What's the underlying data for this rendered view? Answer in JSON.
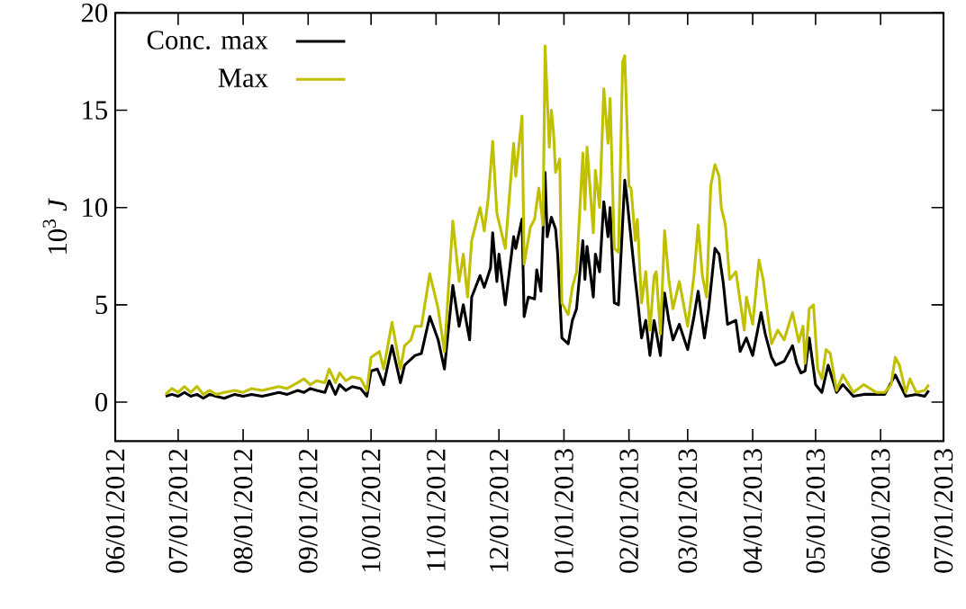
{
  "chart_data": {
    "type": "line",
    "ylabel": "10$^{3}$ *J*",
    "xlim": [
      "2012-06-01",
      "2013-07-01"
    ],
    "ylim": [
      -2,
      20
    ],
    "yticks": [
      0,
      5,
      10,
      15,
      20
    ],
    "xticks": [
      {
        "value": "2012-06-01",
        "label": "06/01/2012"
      },
      {
        "value": "2012-07-01",
        "label": "07/01/2012"
      },
      {
        "value": "2012-08-01",
        "label": "08/01/2012"
      },
      {
        "value": "2012-09-01",
        "label": "09/01/2012"
      },
      {
        "value": "2012-10-01",
        "label": "10/01/2012"
      },
      {
        "value": "2012-11-01",
        "label": "11/01/2012"
      },
      {
        "value": "2012-12-01",
        "label": "12/01/2012"
      },
      {
        "value": "2013-01-01",
        "label": "01/01/2013"
      },
      {
        "value": "2013-02-01",
        "label": "02/01/2013"
      },
      {
        "value": "2013-03-01",
        "label": "03/01/2013"
      },
      {
        "value": "2013-04-01",
        "label": "04/01/2013"
      },
      {
        "value": "2013-05-01",
        "label": "05/01/2013"
      },
      {
        "value": "2013-06-01",
        "label": "06/01/2013"
      },
      {
        "value": "2013-07-01",
        "label": "07/01/2013"
      }
    ],
    "legend": "top left",
    "series": [
      {
        "name": "Conc. max",
        "color": "#000000",
        "x": [
          "2012-06-25",
          "2012-06-28",
          "2012-07-01",
          "2012-07-04",
          "2012-07-07",
          "2012-07-10",
          "2012-07-13",
          "2012-07-16",
          "2012-07-19",
          "2012-07-23",
          "2012-07-28",
          "2012-08-01",
          "2012-08-05",
          "2012-08-10",
          "2012-08-14",
          "2012-08-18",
          "2012-08-22",
          "2012-08-27",
          "2012-08-30",
          "2012-09-02",
          "2012-09-05",
          "2012-09-09",
          "2012-09-11",
          "2012-09-14",
          "2012-09-16",
          "2012-09-19",
          "2012-09-22",
          "2012-09-26",
          "2012-09-29",
          "2012-10-01",
          "2012-10-04",
          "2012-10-07",
          "2012-10-11",
          "2012-10-15",
          "2012-10-17",
          "2012-10-22",
          "2012-10-25",
          "2012-10-29",
          "2012-11-02",
          "2012-11-05",
          "2012-11-09",
          "2012-11-12",
          "2012-11-14",
          "2012-11-17",
          "2012-11-18",
          "2012-11-22",
          "2012-11-24",
          "2012-11-27",
          "2012-11-28",
          "2012-11-30",
          "2012-12-01",
          "2012-12-04",
          "2012-12-08",
          "2012-12-09",
          "2012-12-12",
          "2012-12-13",
          "2012-12-15",
          "2012-12-18",
          "2012-12-19",
          "2012-12-21",
          "2012-12-23",
          "2012-12-24",
          "2012-12-26",
          "2012-12-28",
          "2012-12-29",
          "2012-12-31",
          "2013-01-03",
          "2013-01-05",
          "2013-01-07",
          "2013-01-10",
          "2013-01-11",
          "2013-01-12",
          "2013-01-15",
          "2013-01-16",
          "2013-01-18",
          "2013-01-20",
          "2013-01-22",
          "2013-01-23",
          "2013-01-25",
          "2013-01-27",
          "2013-01-30",
          "2013-01-31",
          "2013-02-04",
          "2013-02-05",
          "2013-02-07",
          "2013-02-09",
          "2013-02-11",
          "2013-02-13",
          "2013-02-16",
          "2013-02-18",
          "2013-02-20",
          "2013-02-22",
          "2013-02-25",
          "2013-03-01",
          "2013-03-04",
          "2013-03-06",
          "2013-03-09",
          "2013-03-11",
          "2013-03-14",
          "2013-03-16",
          "2013-03-18",
          "2013-03-20",
          "2013-03-24",
          "2013-03-26",
          "2013-03-29",
          "2013-04-01",
          "2013-04-05",
          "2013-04-07",
          "2013-04-10",
          "2013-04-12",
          "2013-04-16",
          "2013-04-20",
          "2013-04-22",
          "2013-04-24",
          "2013-04-26",
          "2013-04-28",
          "2013-05-01",
          "2013-05-04",
          "2013-05-07",
          "2013-05-11",
          "2013-05-14",
          "2013-05-19",
          "2013-05-24",
          "2013-05-30",
          "2013-06-03",
          "2013-06-08",
          "2013-06-13",
          "2013-06-18",
          "2013-06-22",
          "2013-06-24"
        ],
        "values": [
          0.3,
          0.4,
          0.3,
          0.5,
          0.3,
          0.4,
          0.2,
          0.4,
          0.3,
          0.2,
          0.4,
          0.3,
          0.4,
          0.3,
          0.4,
          0.5,
          0.4,
          0.6,
          0.5,
          0.7,
          0.6,
          0.5,
          1.1,
          0.4,
          0.9,
          0.6,
          0.8,
          0.7,
          0.3,
          1.6,
          1.7,
          0.9,
          2.9,
          1.0,
          1.9,
          2.4,
          2.5,
          4.4,
          3.2,
          1.7,
          6.0,
          3.9,
          5.0,
          3.2,
          5.4,
          6.5,
          5.9,
          6.9,
          8.7,
          6.2,
          7.6,
          5.0,
          8.5,
          7.9,
          9.4,
          4.4,
          5.4,
          5.3,
          6.8,
          5.7,
          11.8,
          8.5,
          9.5,
          8.9,
          7.6,
          3.3,
          3.0,
          4.2,
          4.8,
          8.3,
          6.3,
          8.0,
          5.4,
          7.6,
          6.7,
          10.3,
          8.5,
          10.0,
          5.1,
          5.0,
          11.4,
          10.5,
          6.3,
          5.4,
          3.3,
          4.2,
          2.4,
          4.2,
          2.4,
          5.6,
          4.2,
          3.2,
          4.0,
          2.7,
          4.4,
          5.7,
          3.3,
          4.8,
          7.9,
          7.6,
          6.1,
          4.0,
          4.2,
          2.6,
          3.3,
          2.4,
          4.6,
          3.5,
          2.3,
          1.9,
          2.1,
          2.9,
          2.0,
          1.5,
          1.6,
          3.3,
          0.9,
          0.5,
          1.9,
          0.5,
          0.9,
          0.3,
          0.4,
          0.4,
          0.4,
          1.4,
          0.3,
          0.4,
          0.3,
          0.6
        ]
      },
      {
        "name": "Max",
        "color": "#c0c000",
        "x": [
          "2012-06-25",
          "2012-06-28",
          "2012-07-01",
          "2012-07-04",
          "2012-07-07",
          "2012-07-10",
          "2012-07-13",
          "2012-07-16",
          "2012-07-19",
          "2012-07-23",
          "2012-07-28",
          "2012-08-01",
          "2012-08-05",
          "2012-08-10",
          "2012-08-14",
          "2012-08-18",
          "2012-08-22",
          "2012-08-27",
          "2012-08-30",
          "2012-09-02",
          "2012-09-05",
          "2012-09-09",
          "2012-09-11",
          "2012-09-14",
          "2012-09-16",
          "2012-09-19",
          "2012-09-22",
          "2012-09-26",
          "2012-09-29",
          "2012-10-01",
          "2012-10-05",
          "2012-10-07",
          "2012-10-11",
          "2012-10-15",
          "2012-10-17",
          "2012-10-20",
          "2012-10-22",
          "2012-10-25",
          "2012-10-29",
          "2012-11-02",
          "2012-11-05",
          "2012-11-09",
          "2012-11-12",
          "2012-11-14",
          "2012-11-16",
          "2012-11-18",
          "2012-11-22",
          "2012-11-24",
          "2012-11-26",
          "2012-11-28",
          "2012-11-30",
          "2012-12-04",
          "2012-12-06",
          "2012-12-08",
          "2012-12-09",
          "2012-12-12",
          "2012-12-13",
          "2012-12-16",
          "2012-12-18",
          "2012-12-20",
          "2012-12-22",
          "2012-12-23",
          "2012-12-25",
          "2012-12-26",
          "2012-12-27",
          "2012-12-28",
          "2012-12-30",
          "2012-12-31",
          "2013-01-03",
          "2013-01-05",
          "2013-01-07",
          "2013-01-10",
          "2013-01-11",
          "2013-01-12",
          "2013-01-15",
          "2013-01-16",
          "2013-01-18",
          "2013-01-20",
          "2013-01-22",
          "2013-01-23",
          "2013-01-25",
          "2013-01-27",
          "2013-01-29",
          "2013-01-30",
          "2013-02-01",
          "2013-02-02",
          "2013-02-04",
          "2013-02-05",
          "2013-02-07",
          "2013-02-09",
          "2013-02-11",
          "2013-02-13",
          "2013-02-14",
          "2013-02-16",
          "2013-02-18",
          "2013-02-20",
          "2013-02-22",
          "2013-02-25",
          "2013-03-01",
          "2013-03-04",
          "2013-03-06",
          "2013-03-08",
          "2013-03-10",
          "2013-03-12",
          "2013-03-14",
          "2013-03-16",
          "2013-03-17",
          "2013-03-19",
          "2013-03-21",
          "2013-03-24",
          "2013-03-28",
          "2013-03-29",
          "2013-04-01",
          "2013-04-04",
          "2013-04-06",
          "2013-04-10",
          "2013-04-13",
          "2013-04-16",
          "2013-04-20",
          "2013-04-23",
          "2013-04-25",
          "2013-04-26",
          "2013-04-28",
          "2013-04-30",
          "2013-05-02",
          "2013-05-04",
          "2013-05-06",
          "2013-05-08",
          "2013-05-11",
          "2013-05-14",
          "2013-05-19",
          "2013-05-24",
          "2013-05-30",
          "2013-06-03",
          "2013-06-06",
          "2013-06-08",
          "2013-06-10",
          "2013-06-13",
          "2013-06-15",
          "2013-06-18",
          "2013-06-22",
          "2013-06-24"
        ],
        "values": [
          0.4,
          0.7,
          0.5,
          0.8,
          0.5,
          0.8,
          0.4,
          0.6,
          0.4,
          0.5,
          0.6,
          0.5,
          0.7,
          0.6,
          0.7,
          0.8,
          0.7,
          1.0,
          1.2,
          0.9,
          1.1,
          1.0,
          1.7,
          1.0,
          1.5,
          1.1,
          1.3,
          1.2,
          0.6,
          2.3,
          2.6,
          1.7,
          4.1,
          1.7,
          2.9,
          3.2,
          3.9,
          3.9,
          6.6,
          4.8,
          2.6,
          9.3,
          6.2,
          7.6,
          5.4,
          8.3,
          10.0,
          8.8,
          10.6,
          13.4,
          9.7,
          7.9,
          10.6,
          13.3,
          11.6,
          14.7,
          7.1,
          9.0,
          9.4,
          11.0,
          9.1,
          18.3,
          13.1,
          15.0,
          13.9,
          11.8,
          12.5,
          5.1,
          4.5,
          5.9,
          6.7,
          12.8,
          9.9,
          13.1,
          8.7,
          11.9,
          10.0,
          16.1,
          13.3,
          15.6,
          7.9,
          7.7,
          17.5,
          17.8,
          11.1,
          11.0,
          8.3,
          9.4,
          5.1,
          6.7,
          3.7,
          6.5,
          6.7,
          3.5,
          8.8,
          6.3,
          4.8,
          6.2,
          3.9,
          6.5,
          9.1,
          6.5,
          5.4,
          11.1,
          12.2,
          11.6,
          10.0,
          9.1,
          6.3,
          6.7,
          3.7,
          5.4,
          4.0,
          7.3,
          6.3,
          3.0,
          3.7,
          3.2,
          4.6,
          3.1,
          3.9,
          2.0,
          4.8,
          5.0,
          1.7,
          1.2,
          2.7,
          2.5,
          0.6,
          1.4,
          0.5,
          0.9,
          0.5,
          0.5,
          0.9,
          2.3,
          1.9,
          0.5,
          1.2,
          0.5,
          0.6,
          0.9
        ]
      }
    ]
  }
}
